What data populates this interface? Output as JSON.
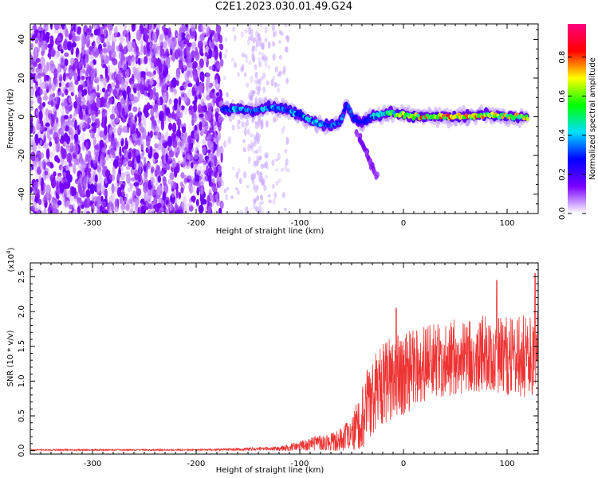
{
  "figure_title": "C2E1.2023.030.01.49.G24",
  "chart_data": [
    {
      "type": "heatmap",
      "xlabel": "Height of straight line (km)",
      "ylabel": "Frequency (Hz)",
      "xlim": [
        -360,
        130
      ],
      "ylim": [
        -50,
        48
      ],
      "x_ticks": [
        -300,
        -200,
        -100,
        0,
        100
      ],
      "x_tick_labels": [
        "-300",
        "-200",
        "-100",
        "0",
        "100"
      ],
      "y_ticks": [
        -40,
        -20,
        0,
        20,
        40
      ],
      "y_tick_labels": [
        "-40",
        "-20",
        "0",
        "20",
        "40"
      ],
      "colorbar": {
        "label": "Normalized spectral amplitude",
        "range": [
          0,
          0.97
        ],
        "ticks": [
          0.0,
          0.2,
          0.4,
          0.6,
          0.8
        ],
        "tick_labels": [
          "0.0",
          "0.2",
          "0.4",
          "0.6",
          "0.8"
        ],
        "colormap": [
          "#ffffff",
          "#7a00ff",
          "#0000ff",
          "#00e0ff",
          "#00ff00",
          "#ffff00",
          "#ff0000",
          "#ff0080"
        ]
      },
      "noise_region": {
        "x_range": [
          -360,
          -175
        ],
        "freq_range": [
          -50,
          48
        ],
        "typical_amplitude": 0.1
      },
      "sparse_noise_region": {
        "x_range": [
          -175,
          -110
        ],
        "typical_amplitude": 0.03
      },
      "signal_trace": [
        {
          "x": -175,
          "freq": 4,
          "amp": 0.4
        },
        {
          "x": -160,
          "freq": 4,
          "amp": 0.45
        },
        {
          "x": -145,
          "freq": 3,
          "amp": 0.4
        },
        {
          "x": -130,
          "freq": 5,
          "amp": 0.45
        },
        {
          "x": -115,
          "freq": 4,
          "amp": 0.4
        },
        {
          "x": -100,
          "freq": 1,
          "amp": 0.45
        },
        {
          "x": -90,
          "freq": -2,
          "amp": 0.5
        },
        {
          "x": -80,
          "freq": -4,
          "amp": 0.45
        },
        {
          "x": -70,
          "freq": -5,
          "amp": 0.4
        },
        {
          "x": -60,
          "freq": -2,
          "amp": 0.4
        },
        {
          "x": -55,
          "freq": 7,
          "amp": 0.35
        },
        {
          "x": -48,
          "freq": -1,
          "amp": 0.35
        },
        {
          "x": -40,
          "freq": -3,
          "amp": 0.3
        },
        {
          "x": -30,
          "freq": 0,
          "amp": 0.45
        },
        {
          "x": -15,
          "freq": 2,
          "amp": 0.6
        },
        {
          "x": 0,
          "freq": 1,
          "amp": 0.75
        },
        {
          "x": 20,
          "freq": 0,
          "amp": 0.85
        },
        {
          "x": 40,
          "freq": 0,
          "amp": 0.9
        },
        {
          "x": 60,
          "freq": 0,
          "amp": 0.85
        },
        {
          "x": 80,
          "freq": 1,
          "amp": 0.8
        },
        {
          "x": 100,
          "freq": 0,
          "amp": 0.8
        },
        {
          "x": 120,
          "freq": 0,
          "amp": 0.75
        }
      ],
      "descending_branch": [
        {
          "x": -45,
          "freq": -8
        },
        {
          "x": -40,
          "freq": -14
        },
        {
          "x": -35,
          "freq": -20
        },
        {
          "x": -30,
          "freq": -26
        },
        {
          "x": -25,
          "freq": -32
        }
      ]
    },
    {
      "type": "line",
      "xlabel": "Height of straight line (km)",
      "ylabel": "SNR (10 * v/v)",
      "y_scale_label": "(x10",
      "y_scale_exponent": "4",
      "y_scale_suffix": ")",
      "xlim": [
        -360,
        130
      ],
      "ylim": [
        -0.05,
        2.7
      ],
      "x_ticks": [
        -300,
        -200,
        -100,
        0,
        100
      ],
      "x_tick_labels": [
        "-300",
        "-200",
        "-100",
        "0",
        "100"
      ],
      "y_ticks": [
        0.0,
        0.5,
        1.0,
        1.5,
        2.0,
        2.5
      ],
      "y_tick_labels": [
        "0.0",
        "0.5",
        "1.0",
        "1.5",
        "2.0",
        "2.5"
      ],
      "series": [
        {
          "color": "#ee3333",
          "envelope": [
            {
              "x": -360,
              "mean": 0.01,
              "spread": 0.01
            },
            {
              "x": -200,
              "mean": 0.01,
              "spread": 0.01
            },
            {
              "x": -120,
              "mean": 0.03,
              "spread": 0.03
            },
            {
              "x": -100,
              "mean": 0.06,
              "spread": 0.08
            },
            {
              "x": -70,
              "mean": 0.12,
              "spread": 0.15
            },
            {
              "x": -50,
              "mean": 0.2,
              "spread": 0.25
            },
            {
              "x": -40,
              "mean": 0.5,
              "spread": 0.5
            },
            {
              "x": -25,
              "mean": 0.9,
              "spread": 0.6
            },
            {
              "x": -10,
              "mean": 1.05,
              "spread": 0.6
            },
            {
              "x": 0,
              "mean": 1.1,
              "spread": 0.6
            },
            {
              "x": 20,
              "mean": 1.25,
              "spread": 0.55
            },
            {
              "x": 50,
              "mean": 1.35,
              "spread": 0.55
            },
            {
              "x": 80,
              "mean": 1.4,
              "spread": 0.55
            },
            {
              "x": 110,
              "mean": 1.35,
              "spread": 0.6
            },
            {
              "x": 130,
              "mean": 1.4,
              "spread": 0.6
            }
          ],
          "peaks": [
            {
              "x": -7,
              "y": 2.05
            },
            {
              "x": 90,
              "y": 2.45
            },
            {
              "x": 127,
              "y": 2.55
            }
          ]
        }
      ]
    }
  ]
}
